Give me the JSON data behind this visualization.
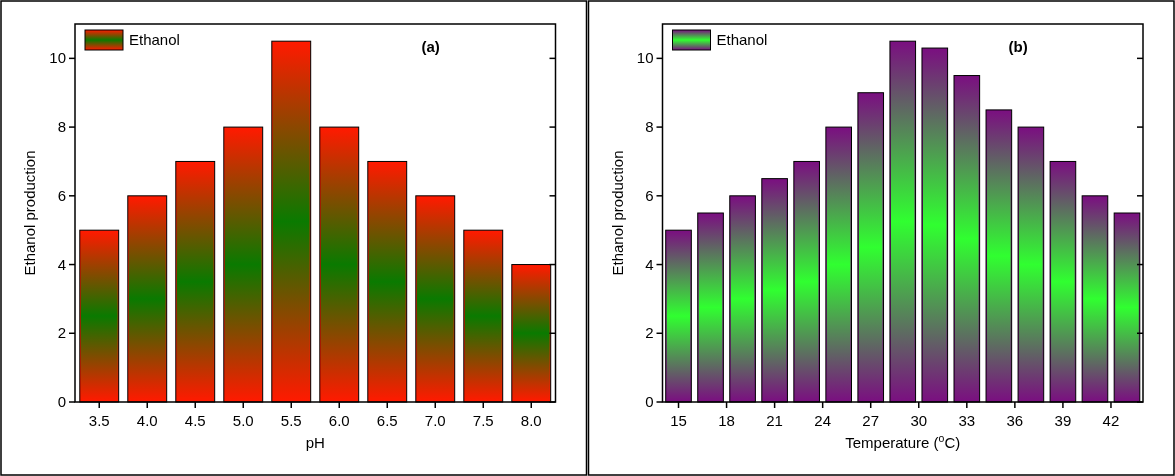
{
  "chart_data": [
    {
      "type": "bar",
      "xlabel": "pH",
      "ylabel": "Ethanol production",
      "annotations": [
        "(a)"
      ],
      "categories": [
        "3.5",
        "4.0",
        "4.5",
        "5.0",
        "5.5",
        "6.0",
        "6.5",
        "7.0",
        "7.5",
        "8.0"
      ],
      "series": [
        {
          "name": "Ethanol",
          "color": "#ff1a00",
          "values": [
            5,
            6,
            7,
            8,
            10.5,
            8,
            7,
            6,
            5,
            4
          ]
        }
      ],
      "ylim": [
        0,
        11
      ],
      "yticks": [
        0,
        2,
        4,
        6,
        8,
        10
      ],
      "legend": "top left"
    },
    {
      "type": "bar",
      "xlabel": "Temperature ($^{o}$C)",
      "ylabel": "Ethanol production",
      "annotations": [
        "(b)"
      ],
      "x": [
        15,
        17,
        19,
        21,
        23,
        25,
        27,
        29,
        31,
        33,
        35,
        37,
        39,
        41,
        43
      ],
      "series": [
        {
          "name": "Ethanol",
          "color": "#7a1080",
          "values": [
            5,
            5.5,
            6,
            6.5,
            7,
            8,
            9,
            10.5,
            10.3,
            9.5,
            8.5,
            8,
            7,
            6,
            5.5
          ]
        }
      ],
      "xlim": [
        14,
        44
      ],
      "xticks": [
        15,
        18,
        21,
        24,
        27,
        30,
        33,
        36,
        39,
        42
      ],
      "ylim": [
        0,
        11
      ],
      "yticks": [
        0,
        2,
        4,
        6,
        8,
        10
      ],
      "legend": "top left"
    }
  ]
}
